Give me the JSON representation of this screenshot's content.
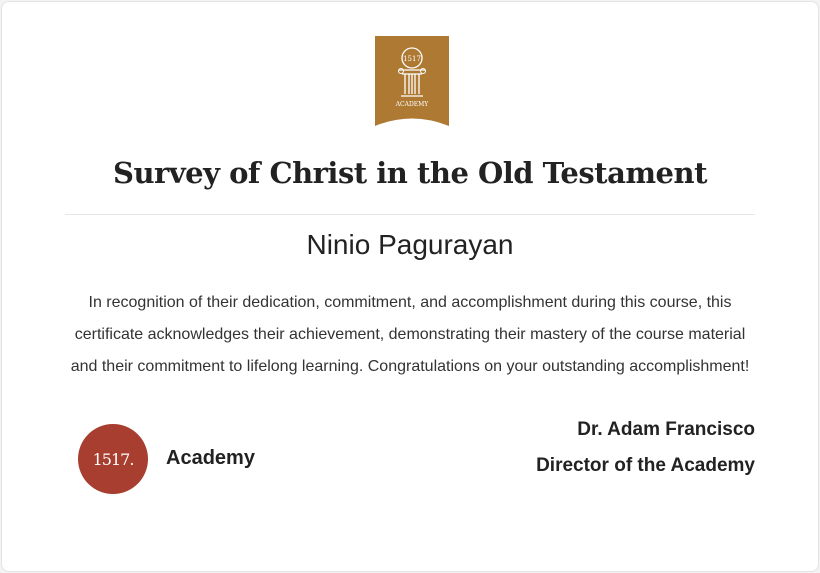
{
  "certificate": {
    "logo_text": "1517",
    "logo_subtext": "ACADEMY",
    "course_title": "Survey of Christ in the Old Testament",
    "recipient_name": "Ninio Pagurayan",
    "body_text": "In recognition of their dedication, commitment, and accomplishment during this course, this certificate acknowledges their achievement, demonstrating their mastery of the course material and their commitment to lifelong learning. Congratulations on your outstanding accomplishment!",
    "seal_text": "1517.",
    "org_name": "Academy",
    "signer_name": "Dr. Adam Francisco",
    "signer_title": "Director of the Academy"
  },
  "colors": {
    "ribbon": "#ae7a33",
    "seal": "#a83e2f"
  }
}
